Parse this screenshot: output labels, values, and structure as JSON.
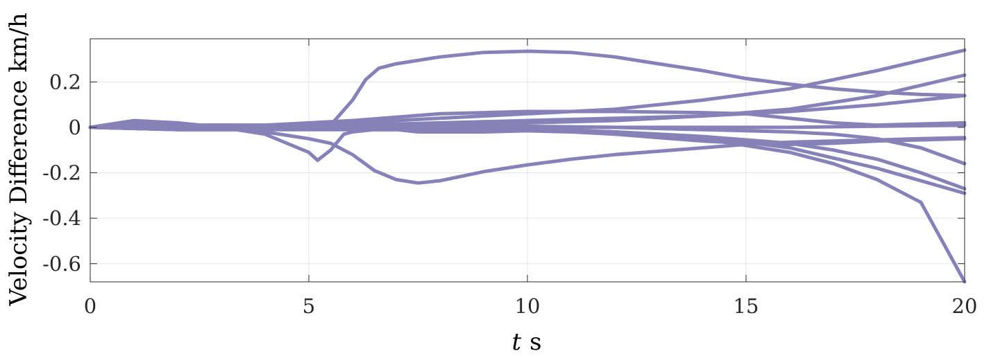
{
  "chart_data": {
    "type": "line",
    "title": "",
    "xlabel": "t s",
    "xlabel_var": "t",
    "xlabel_unit": "s",
    "ylabel": "Velocity Difference km/h",
    "xlim": [
      0,
      20
    ],
    "ylim": [
      -0.68,
      0.39
    ],
    "xticks": [
      0,
      5,
      10,
      15,
      20
    ],
    "xtick_labels": [
      "0",
      "5",
      "10",
      "15",
      "20"
    ],
    "yticks": [
      -0.6,
      -0.4,
      -0.2,
      0,
      0.2
    ],
    "ytick_labels": [
      "-0.6",
      "-0.4",
      "-0.2",
      "0",
      "0.2"
    ],
    "grid": true,
    "legend": "none",
    "color": "#8682b8",
    "series": [
      {
        "x": [
          0,
          1,
          2,
          3,
          4,
          5,
          5.5,
          6,
          6.3,
          6.6,
          7,
          8,
          9,
          10,
          11,
          12,
          13,
          14,
          15,
          16,
          17,
          18,
          19,
          20
        ],
        "values": [
          0,
          0.02,
          0.01,
          0,
          0,
          0,
          0.01,
          0.12,
          0.21,
          0.26,
          0.28,
          0.31,
          0.33,
          0.335,
          0.33,
          0.31,
          0.28,
          0.25,
          0.215,
          0.19,
          0.17,
          0.155,
          0.145,
          0.14
        ]
      },
      {
        "x": [
          0,
          1,
          2,
          3,
          4,
          5,
          5.2,
          5.5,
          5.8,
          6,
          6.5,
          7,
          7.5,
          8,
          9,
          10,
          11,
          12,
          13,
          14,
          15,
          16,
          17,
          18,
          19,
          20
        ],
        "values": [
          0,
          0.02,
          0.01,
          0,
          -0.03,
          -0.11,
          -0.145,
          -0.1,
          -0.03,
          -0.02,
          -0.01,
          -0.01,
          -0.02,
          -0.02,
          -0.02,
          -0.015,
          -0.02,
          -0.03,
          -0.045,
          -0.06,
          -0.07,
          -0.075,
          -0.07,
          -0.06,
          -0.055,
          -0.05
        ]
      },
      {
        "x": [
          0,
          1,
          2,
          3,
          4,
          5,
          5.5,
          6,
          6.5,
          7,
          7.5,
          8,
          9,
          10,
          11,
          12,
          13,
          14,
          15,
          16,
          17,
          18,
          19,
          20
        ],
        "values": [
          0,
          0.03,
          0.02,
          0,
          -0.02,
          -0.05,
          -0.07,
          -0.12,
          -0.19,
          -0.23,
          -0.245,
          -0.235,
          -0.195,
          -0.165,
          -0.14,
          -0.12,
          -0.105,
          -0.09,
          -0.075,
          -0.065,
          -0.06,
          -0.055,
          -0.05,
          -0.045
        ]
      },
      {
        "x": [
          0,
          2,
          4,
          6,
          8,
          10,
          12,
          14,
          16,
          17,
          18,
          19,
          20
        ],
        "values": [
          0,
          0,
          0,
          0.005,
          0.005,
          0.005,
          0,
          -0.01,
          -0.02,
          -0.03,
          -0.05,
          -0.09,
          -0.16
        ]
      },
      {
        "x": [
          0,
          2,
          4,
          6,
          8,
          10,
          12,
          14,
          15,
          16,
          17,
          18,
          19,
          20
        ],
        "values": [
          0,
          -0.01,
          -0.01,
          0,
          0,
          -0.005,
          -0.02,
          -0.05,
          -0.08,
          -0.11,
          -0.16,
          -0.23,
          -0.33,
          -0.68
        ]
      },
      {
        "x": [
          0,
          2,
          4,
          6,
          8,
          10,
          12,
          14,
          16,
          17,
          18,
          19,
          20
        ],
        "values": [
          0,
          0,
          0,
          0,
          0,
          -0.01,
          -0.02,
          -0.04,
          -0.07,
          -0.1,
          -0.14,
          -0.2,
          -0.27
        ]
      },
      {
        "x": [
          0,
          2,
          4,
          6,
          8,
          10,
          12,
          14,
          16,
          18,
          20
        ],
        "values": [
          0,
          -0.01,
          -0.01,
          -0.01,
          -0.01,
          -0.01,
          -0.02,
          -0.04,
          -0.09,
          -0.18,
          -0.29
        ]
      },
      {
        "x": [
          0,
          2,
          4,
          6,
          8,
          10,
          12,
          14,
          16,
          18,
          20
        ],
        "values": [
          0,
          0.01,
          0.01,
          0.02,
          0.04,
          0.06,
          0.08,
          0.12,
          0.17,
          0.25,
          0.34
        ]
      },
      {
        "x": [
          0,
          2,
          4,
          6,
          8,
          10,
          12,
          14,
          16,
          18,
          20
        ],
        "values": [
          0,
          -0.01,
          0,
          0.01,
          0.02,
          0.03,
          0.04,
          0.05,
          0.08,
          0.14,
          0.23
        ]
      },
      {
        "x": [
          0,
          2,
          4,
          6,
          8,
          10,
          12,
          14,
          15,
          16,
          17,
          18,
          19,
          20
        ],
        "values": [
          0,
          0.01,
          0.01,
          0.03,
          0.06,
          0.07,
          0.07,
          0.065,
          0.06,
          0.04,
          0.02,
          0.01,
          0.015,
          0.02
        ]
      },
      {
        "x": [
          0,
          2,
          4,
          6,
          8,
          10,
          12,
          14,
          16,
          18,
          20
        ],
        "values": [
          0,
          -0.01,
          0,
          0,
          0.01,
          0.02,
          0.03,
          0.05,
          0.07,
          0.1,
          0.14
        ]
      },
      {
        "x": [
          0,
          2,
          4,
          6,
          8,
          10,
          12,
          14,
          16,
          18,
          20
        ],
        "values": [
          0,
          0,
          0,
          0,
          0,
          0,
          0,
          0,
          0,
          0.005,
          0.01
        ]
      }
    ]
  }
}
